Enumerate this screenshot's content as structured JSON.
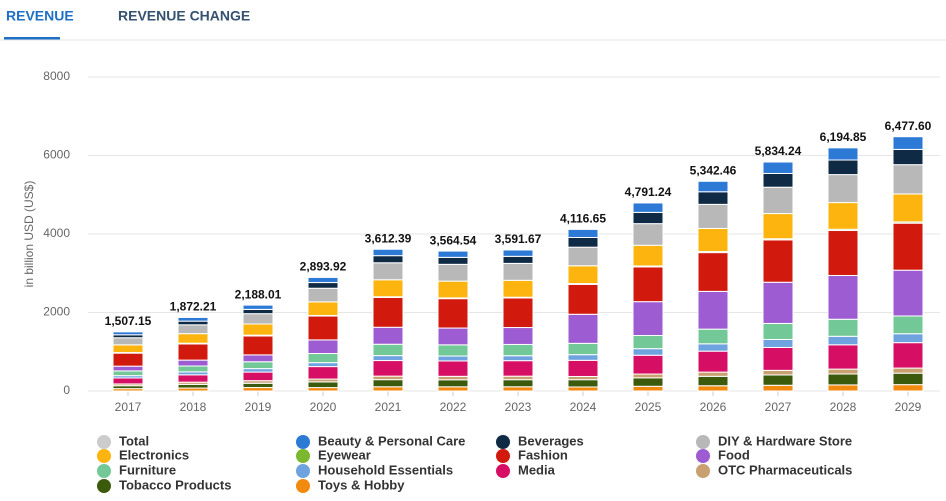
{
  "tabs": [
    "REVENUE",
    "REVENUE CHANGE"
  ],
  "chart_data": {
    "type": "stacked_bar",
    "ylabel": "in billion USD (US$)",
    "categories": [
      "2017",
      "2018",
      "2019",
      "2020",
      "2021",
      "2022",
      "2023",
      "2024",
      "2025",
      "2026",
      "2027",
      "2028",
      "2029"
    ],
    "ylim": [
      0,
      8000
    ],
    "yticks": [
      0,
      2000,
      4000,
      6000,
      8000
    ],
    "grid": true,
    "series": [
      {
        "name": "Total",
        "color": "#cccccc",
        "hidden": true,
        "values": [
          1507.15,
          1872.21,
          2188.01,
          2893.92,
          3612.39,
          3564.54,
          3591.67,
          4116.65,
          4791.24,
          5342.46,
          5834.24,
          6194.85,
          6477.6
        ],
        "value_labels": [
          "1,507.15",
          "1,872.21",
          "2,188.01",
          "2,893.92",
          "3,612.39",
          "3,564.54",
          "3,591.67",
          "4,116.65",
          "4,791.24",
          "5,342.46",
          "5,834.24",
          "6,194.85",
          "6,477.60"
        ]
      },
      {
        "name": "Beauty & Personal Care",
        "color": "#2d7ad6",
        "values": [
          75,
          94,
          109,
          130,
          163,
          160,
          162,
          206,
          240,
          267,
          292,
          310,
          324
        ]
      },
      {
        "name": "Beverages",
        "color": "#0f2a44",
        "values": [
          75,
          94,
          109,
          145,
          181,
          178,
          180,
          247,
          287,
          321,
          350,
          372,
          389
        ]
      },
      {
        "name": "DIY & Hardware Store",
        "color": "#b8b8b8",
        "values": [
          181,
          225,
          263,
          347,
          433,
          428,
          431,
          473,
          551,
          614,
          671,
          712,
          745
        ]
      },
      {
        "name": "Electronics",
        "color": "#fdb40f",
        "values": [
          196,
          243,
          284,
          347,
          433,
          428,
          431,
          453,
          527,
          588,
          642,
          681,
          713
        ]
      },
      {
        "name": "Eyewear",
        "color": "#7cb82f",
        "values": [
          15,
          19,
          22,
          14,
          18,
          18,
          18,
          21,
          24,
          27,
          29,
          31,
          32
        ]
      },
      {
        "name": "Fashion",
        "color": "#d11a0d",
        "values": [
          332,
          412,
          481,
          608,
          759,
          749,
          754,
          762,
          886,
          988,
          1079,
          1146,
          1198
        ]
      },
      {
        "name": "Food",
        "color": "#9d5cd1",
        "values": [
          121,
          150,
          175,
          347,
          433,
          428,
          431,
          741,
          862,
          962,
          1050,
          1115,
          1166
        ]
      },
      {
        "name": "Furniture",
        "color": "#72c997",
        "values": [
          121,
          150,
          175,
          232,
          289,
          285,
          287,
          288,
          335,
          374,
          408,
          434,
          453
        ]
      },
      {
        "name": "Household Essentials",
        "color": "#6fa3e0",
        "values": [
          60,
          75,
          88,
          101,
          126,
          125,
          126,
          144,
          168,
          187,
          204,
          217,
          227
        ]
      },
      {
        "name": "Media",
        "color": "#d60f64",
        "values": [
          151,
          187,
          219,
          318,
          397,
          392,
          395,
          412,
          479,
          534,
          583,
          619,
          648
        ]
      },
      {
        "name": "OTC Pharmaceuticals",
        "color": "#c9a070",
        "values": [
          45,
          56,
          66,
          72,
          90,
          89,
          90,
          82,
          96,
          107,
          117,
          124,
          130
        ]
      },
      {
        "name": "Tobacco Products",
        "color": "#3c5a0b",
        "values": [
          75,
          94,
          109,
          145,
          181,
          178,
          180,
          185,
          216,
          240,
          263,
          279,
          292
        ]
      },
      {
        "name": "Toys & Hobby",
        "color": "#f28a0f",
        "values": [
          60,
          75,
          88,
          87,
          108,
          107,
          108,
          103,
          120,
          134,
          146,
          155,
          162
        ]
      }
    ]
  }
}
